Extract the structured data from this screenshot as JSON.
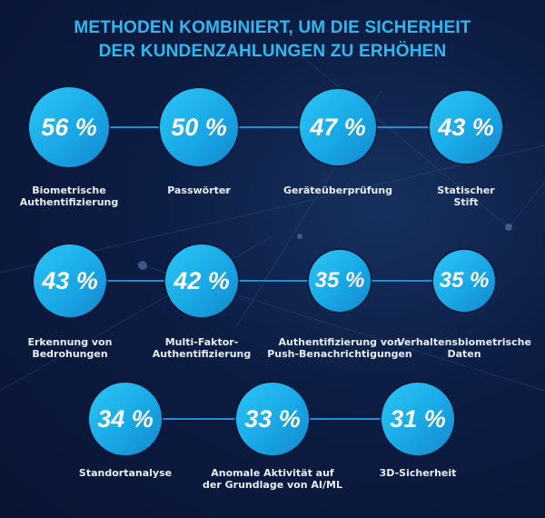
{
  "chart_data": {
    "type": "bubble-infographic",
    "title": "METHODEN KOMBINIERT, UM DIE SICHERHEIT DER KUNDENZAHLUNGEN ZU ERHÖHEN",
    "title_lines": [
      "METHODEN KOMBINIERT, UM DIE SICHERHEIT",
      "DER KUNDENZAHLUNGEN ZU ERHÖHEN"
    ],
    "unit": "%",
    "items": [
      {
        "label": [
          "Biometrische",
          "Authentifizierung"
        ],
        "value": 56,
        "display": "56 %"
      },
      {
        "label": [
          "Passwörter"
        ],
        "value": 50,
        "display": "50 %"
      },
      {
        "label": [
          "Geräteüberprüfung"
        ],
        "value": 47,
        "display": "47 %"
      },
      {
        "label": [
          "Statischer",
          "Stift"
        ],
        "value": 43,
        "display": "43 %"
      },
      {
        "label": [
          "Erkennung von",
          "Bedrohungen"
        ],
        "value": 43,
        "display": "43 %"
      },
      {
        "label": [
          "Multi-Faktor-",
          "Authentifizierung"
        ],
        "value": 42,
        "display": "42 %"
      },
      {
        "label": [
          "Authentifizierung von",
          "Push-Benachrichtigungen"
        ],
        "value": 35,
        "display": "35 %"
      },
      {
        "label": [
          "Verhaltensbiometrische",
          "Daten"
        ],
        "value": 35,
        "display": "35 %"
      },
      {
        "label": [
          "Standortanalyse"
        ],
        "value": 34,
        "display": "34 %"
      },
      {
        "label": [
          "Anomale Aktivität auf",
          "der Grundlage von AI/ML"
        ],
        "value": 33,
        "display": "33 %"
      },
      {
        "label": [
          "3D-Sicherheit"
        ],
        "value": 31,
        "display": "31 %"
      }
    ],
    "colors": {
      "title": "#2fb8ee",
      "bubble": "#1fb0eb",
      "background": "#0c1c42",
      "label": "#e6ecf4"
    }
  }
}
